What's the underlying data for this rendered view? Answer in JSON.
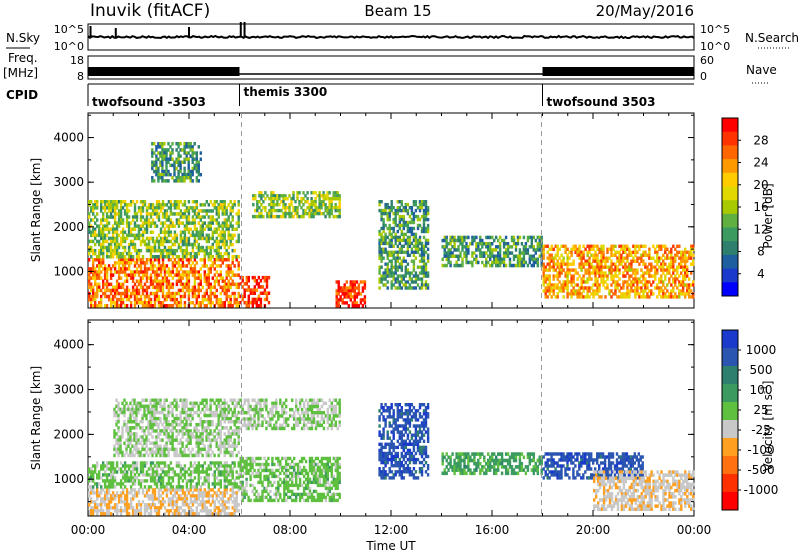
{
  "header": {
    "station": "Inuvik (fitACF)",
    "beam": "Beam 15",
    "date": "20/May/2016"
  },
  "top_panels": {
    "nsky_label": "N.Sky",
    "nsearch_label": "N.Search",
    "freq_label": "Freq.",
    "freq_unit": "[MHz]",
    "nave_label": "Nave",
    "cpid_label": "CPID",
    "left_ticks_top": [
      "10^5",
      "10^0"
    ],
    "right_ticks_top": [
      "10^5",
      "10^0"
    ],
    "left_ticks_mid": [
      "18",
      "8"
    ],
    "right_ticks_mid": [
      "60",
      "0"
    ],
    "cpid_segments": [
      {
        "label": "twofsound -3503",
        "start_hour": 0,
        "end_hour": 6
      },
      {
        "label": "themis 3300",
        "start_hour": 6,
        "end_hour": 18
      },
      {
        "label": "twofsound 3503",
        "start_hour": 18,
        "end_hour": 24
      }
    ]
  },
  "axes": {
    "xlabel": "Time UT",
    "ylabel": "Slant Range [km]",
    "x_ticks": [
      "00:00",
      "04:00",
      "08:00",
      "12:00",
      "16:00",
      "20:00",
      "00:00"
    ],
    "y_ticks": [
      "1000",
      "2000",
      "3000",
      "4000"
    ]
  },
  "power_colorbar": {
    "label": "Power [dB]",
    "ticks": [
      "28",
      "24",
      "20",
      "16",
      "12",
      "8",
      "4"
    ],
    "colors": [
      "#ff0000",
      "#ff3300",
      "#ff6600",
      "#ff9900",
      "#ffcc00",
      "#e0d800",
      "#a8c800",
      "#5fb040",
      "#3a9a60",
      "#2e7f6e",
      "#1e5fa0",
      "#1a3acc",
      "#0000ff"
    ]
  },
  "velocity_colorbar": {
    "label": "Velocity [m s",
    "label_sup": "-1",
    "label_end": "]",
    "ticks": [
      "1000",
      "500",
      "100",
      "25",
      "-25",
      "-100",
      "-500",
      "-1000"
    ],
    "colors": [
      "#1a3acc",
      "#2a55b0",
      "#2e7f6e",
      "#3a9a60",
      "#5fc040",
      "#c8c8c8",
      "#ffa020",
      "#ff7010",
      "#ff3000",
      "#ff0000"
    ]
  },
  "chart_data": [
    {
      "type": "heatmap",
      "title": "Beam 15",
      "panel": "Power",
      "xlabel": "Time UT",
      "ylabel": "Slant Range [km]",
      "xlim": [
        0,
        24
      ],
      "ylim": [
        180,
        4550
      ],
      "colorbar_label": "Power [dB]",
      "colorbar_range": [
        0,
        30
      ],
      "echo_regions": [
        {
          "t0": 0.0,
          "t1": 6.0,
          "r0": 200,
          "r1": 1300,
          "power": 24
        },
        {
          "t0": 0.0,
          "t1": 6.0,
          "r0": 1300,
          "r1": 2600,
          "power": 14
        },
        {
          "t0": 2.5,
          "t1": 4.5,
          "r0": 3000,
          "r1": 3900,
          "power": 10
        },
        {
          "t0": 6.0,
          "t1": 7.2,
          "r0": 200,
          "r1": 900,
          "power": 28
        },
        {
          "t0": 6.5,
          "t1": 10.0,
          "r0": 2200,
          "r1": 2800,
          "power": 14
        },
        {
          "t0": 9.8,
          "t1": 11.0,
          "r0": 200,
          "r1": 800,
          "power": 28
        },
        {
          "t0": 11.5,
          "t1": 13.5,
          "r0": 600,
          "r1": 2600,
          "power": 10
        },
        {
          "t0": 14.0,
          "t1": 18.0,
          "r0": 1100,
          "r1": 1800,
          "power": 10
        },
        {
          "t0": 18.0,
          "t1": 24.0,
          "r0": 400,
          "r1": 1600,
          "power": 22
        }
      ]
    },
    {
      "type": "heatmap",
      "panel": "Velocity",
      "xlabel": "Time UT",
      "ylabel": "Slant Range [km]",
      "xlim": [
        0,
        24
      ],
      "ylim": [
        180,
        4550
      ],
      "colorbar_label": "Velocity [m s-1]",
      "colorbar_range": [
        -1000,
        1000
      ],
      "echo_regions": [
        {
          "t0": 0.0,
          "t1": 6.0,
          "r0": 200,
          "r1": 800,
          "velocity": -200
        },
        {
          "t0": 0.0,
          "t1": 6.0,
          "r0": 800,
          "r1": 1400,
          "velocity": 100
        },
        {
          "t0": 1.0,
          "t1": 6.0,
          "r0": 1500,
          "r1": 2800,
          "velocity": 0
        },
        {
          "t0": 6.0,
          "t1": 10.0,
          "r0": 2100,
          "r1": 2800,
          "velocity": 0
        },
        {
          "t0": 6.0,
          "t1": 10.0,
          "r0": 500,
          "r1": 1500,
          "velocity": 100
        },
        {
          "t0": 11.5,
          "t1": 13.5,
          "r0": 1000,
          "r1": 2700,
          "velocity": 800
        },
        {
          "t0": 14.0,
          "t1": 18.0,
          "r0": 1100,
          "r1": 1600,
          "velocity": 300
        },
        {
          "t0": 18.0,
          "t1": 22.0,
          "r0": 1000,
          "r1": 1600,
          "velocity": 800
        },
        {
          "t0": 20.0,
          "t1": 24.0,
          "r0": 300,
          "r1": 1200,
          "velocity": -150
        }
      ]
    }
  ]
}
